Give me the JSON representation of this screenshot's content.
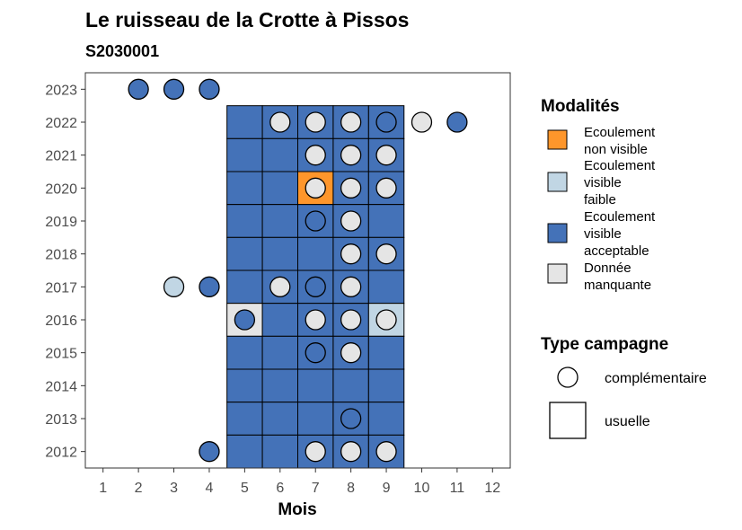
{
  "chart_data": {
    "type": "heatmap",
    "title": "Le ruisseau de la Crotte à Pissos",
    "subtitle": "S2030001",
    "xlabel": "Mois",
    "ylabel": "",
    "x_ticks": [
      1,
      2,
      3,
      4,
      5,
      6,
      7,
      8,
      9,
      10,
      11,
      12
    ],
    "y_ticks": [
      2012,
      2013,
      2014,
      2015,
      2016,
      2017,
      2018,
      2019,
      2020,
      2021,
      2022,
      2023
    ],
    "xlim": [
      0.5,
      12.5
    ],
    "ylim": [
      2011.5,
      2023.5
    ],
    "grid": false,
    "legend_position": "right",
    "colors": {
      "non_visible": "#FE962B",
      "faible": "#C1D6E4",
      "acceptable": "#4472B8",
      "manquante": "#E5E5E5"
    },
    "legend_fill": {
      "title": "Modalités",
      "entries": [
        {
          "key": "non_visible",
          "lines": [
            "Ecoulement",
            "non visible"
          ]
        },
        {
          "key": "faible",
          "lines": [
            "Ecoulement",
            "visible",
            "faible"
          ]
        },
        {
          "key": "acceptable",
          "lines": [
            "Ecoulement",
            "visible",
            "acceptable"
          ]
        },
        {
          "key": "manquante",
          "lines": [
            "Donnée",
            "manquante"
          ]
        }
      ]
    },
    "legend_shape": {
      "title": "Type campagne",
      "entries": [
        {
          "shape": "circle",
          "label": "complémentaire"
        },
        {
          "shape": "square",
          "label": "usuelle"
        }
      ]
    },
    "usuelle": [
      {
        "year": 2022,
        "months": [
          5,
          6,
          7,
          8,
          9
        ],
        "values": [
          "acceptable",
          "acceptable",
          "acceptable",
          "acceptable",
          "acceptable"
        ]
      },
      {
        "year": 2021,
        "months": [
          5,
          6,
          7,
          8,
          9
        ],
        "values": [
          "acceptable",
          "acceptable",
          "acceptable",
          "acceptable",
          "acceptable"
        ]
      },
      {
        "year": 2020,
        "months": [
          5,
          6,
          7,
          8,
          9
        ],
        "values": [
          "acceptable",
          "acceptable",
          "non_visible",
          "acceptable",
          "acceptable"
        ]
      },
      {
        "year": 2019,
        "months": [
          5,
          6,
          7,
          8,
          9
        ],
        "values": [
          "acceptable",
          "acceptable",
          "acceptable",
          "acceptable",
          "acceptable"
        ]
      },
      {
        "year": 2018,
        "months": [
          5,
          6,
          7,
          8,
          9
        ],
        "values": [
          "acceptable",
          "acceptable",
          "acceptable",
          "acceptable",
          "acceptable"
        ]
      },
      {
        "year": 2017,
        "months": [
          5,
          6,
          7,
          8,
          9
        ],
        "values": [
          "acceptable",
          "acceptable",
          "acceptable",
          "acceptable",
          "acceptable"
        ]
      },
      {
        "year": 2016,
        "months": [
          5,
          6,
          7,
          8,
          9
        ],
        "values": [
          "manquante",
          "acceptable",
          "acceptable",
          "acceptable",
          "faible"
        ]
      },
      {
        "year": 2015,
        "months": [
          5,
          6,
          7,
          8,
          9
        ],
        "values": [
          "acceptable",
          "acceptable",
          "acceptable",
          "acceptable",
          "acceptable"
        ]
      },
      {
        "year": 2014,
        "months": [
          5,
          6,
          7,
          8,
          9
        ],
        "values": [
          "acceptable",
          "acceptable",
          "acceptable",
          "acceptable",
          "acceptable"
        ]
      },
      {
        "year": 2013,
        "months": [
          5,
          6,
          7,
          8,
          9
        ],
        "values": [
          "acceptable",
          "acceptable",
          "acceptable",
          "acceptable",
          "acceptable"
        ]
      },
      {
        "year": 2012,
        "months": [
          5,
          6,
          7,
          8,
          9
        ],
        "values": [
          "acceptable",
          "acceptable",
          "acceptable",
          "acceptable",
          "acceptable"
        ]
      }
    ],
    "complementaire": [
      {
        "year": 2023,
        "month": 2,
        "value": "acceptable"
      },
      {
        "year": 2023,
        "month": 3,
        "value": "acceptable"
      },
      {
        "year": 2023,
        "month": 4,
        "value": "acceptable"
      },
      {
        "year": 2022,
        "month": 6,
        "value": "manquante"
      },
      {
        "year": 2022,
        "month": 7,
        "value": "manquante"
      },
      {
        "year": 2022,
        "month": 8,
        "value": "manquante"
      },
      {
        "year": 2022,
        "month": 9,
        "value": "acceptable"
      },
      {
        "year": 2022,
        "month": 10,
        "value": "manquante"
      },
      {
        "year": 2022,
        "month": 11,
        "value": "acceptable"
      },
      {
        "year": 2021,
        "month": 7,
        "value": "manquante"
      },
      {
        "year": 2021,
        "month": 8,
        "value": "manquante"
      },
      {
        "year": 2021,
        "month": 9,
        "value": "manquante"
      },
      {
        "year": 2020,
        "month": 7,
        "value": "manquante"
      },
      {
        "year": 2020,
        "month": 8,
        "value": "manquante"
      },
      {
        "year": 2020,
        "month": 9,
        "value": "manquante"
      },
      {
        "year": 2019,
        "month": 7,
        "value": "acceptable"
      },
      {
        "year": 2019,
        "month": 8,
        "value": "manquante"
      },
      {
        "year": 2018,
        "month": 8,
        "value": "manquante"
      },
      {
        "year": 2018,
        "month": 9,
        "value": "manquante"
      },
      {
        "year": 2017,
        "month": 3,
        "value": "faible"
      },
      {
        "year": 2017,
        "month": 4,
        "value": "acceptable"
      },
      {
        "year": 2017,
        "month": 6,
        "value": "manquante"
      },
      {
        "year": 2017,
        "month": 7,
        "value": "acceptable"
      },
      {
        "year": 2017,
        "month": 8,
        "value": "manquante"
      },
      {
        "year": 2016,
        "month": 5,
        "value": "acceptable"
      },
      {
        "year": 2016,
        "month": 7,
        "value": "manquante"
      },
      {
        "year": 2016,
        "month": 8,
        "value": "manquante"
      },
      {
        "year": 2016,
        "month": 9,
        "value": "manquante"
      },
      {
        "year": 2015,
        "month": 7,
        "value": "acceptable"
      },
      {
        "year": 2015,
        "month": 8,
        "value": "manquante"
      },
      {
        "year": 2013,
        "month": 8,
        "value": "acceptable"
      },
      {
        "year": 2012,
        "month": 4,
        "value": "acceptable"
      },
      {
        "year": 2012,
        "month": 7,
        "value": "manquante"
      },
      {
        "year": 2012,
        "month": 8,
        "value": "manquante"
      },
      {
        "year": 2012,
        "month": 9,
        "value": "manquante"
      }
    ]
  }
}
